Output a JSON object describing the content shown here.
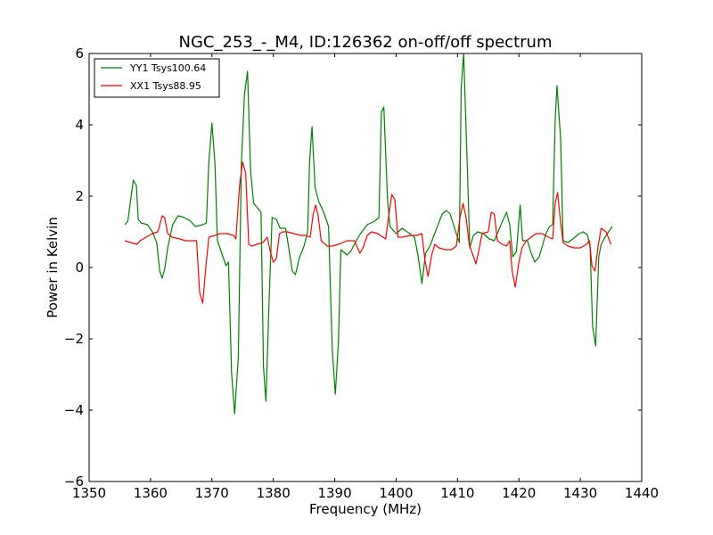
{
  "chart_data": {
    "type": "line",
    "title": "NGC_253_-_M4, ID:126362 on-off/off spectrum",
    "xlabel": "Frequency (MHz)",
    "ylabel": "Power in Kelvin",
    "xlim": [
      1350,
      1440
    ],
    "ylim": [
      -6,
      6
    ],
    "xticks": [
      1350,
      1360,
      1370,
      1380,
      1390,
      1400,
      1410,
      1420,
      1430,
      1440
    ],
    "yticks": [
      -6,
      -4,
      -2,
      0,
      2,
      4,
      6
    ],
    "xtick_labels": [
      "1350",
      "1360",
      "1370",
      "1380",
      "1390",
      "1400",
      "1410",
      "1420",
      "1430",
      "1440"
    ],
    "ytick_labels": [
      "−6",
      "−4",
      "−2",
      "0",
      "2",
      "4",
      "6"
    ],
    "grid": false,
    "legend_position": "top-left",
    "series": [
      {
        "name": "YY1 Tsys100.64",
        "color": "#008000",
        "points": [
          [
            1355.8,
            1.2
          ],
          [
            1356.3,
            1.3
          ],
          [
            1357.2,
            2.45
          ],
          [
            1357.7,
            2.3
          ],
          [
            1358.0,
            1.35
          ],
          [
            1358.5,
            1.25
          ],
          [
            1359.5,
            1.2
          ],
          [
            1360.3,
            1.0
          ],
          [
            1361.0,
            0.7
          ],
          [
            1361.5,
            -0.1
          ],
          [
            1361.9,
            -0.3
          ],
          [
            1362.3,
            -0.05
          ],
          [
            1362.8,
            0.55
          ],
          [
            1363.6,
            1.2
          ],
          [
            1364.5,
            1.45
          ],
          [
            1365.5,
            1.4
          ],
          [
            1366.5,
            1.3
          ],
          [
            1367.3,
            1.15
          ],
          [
            1368.5,
            1.2
          ],
          [
            1369.1,
            1.25
          ],
          [
            1369.5,
            2.95
          ],
          [
            1370.0,
            4.05
          ],
          [
            1370.5,
            2.9
          ],
          [
            1370.9,
            0.75
          ],
          [
            1371.5,
            0.45
          ],
          [
            1372.3,
            0.05
          ],
          [
            1372.7,
            0.15
          ],
          [
            1373.2,
            -2.95
          ],
          [
            1373.7,
            -4.1
          ],
          [
            1374.3,
            -2.5
          ],
          [
            1374.8,
            2.9
          ],
          [
            1375.3,
            4.85
          ],
          [
            1375.8,
            5.5
          ],
          [
            1376.3,
            2.7
          ],
          [
            1376.8,
            1.8
          ],
          [
            1378.0,
            1.55
          ],
          [
            1378.4,
            -2.8
          ],
          [
            1378.8,
            -3.75
          ],
          [
            1379.3,
            -1.0
          ],
          [
            1379.8,
            1.4
          ],
          [
            1380.5,
            1.35
          ],
          [
            1381.1,
            1.1
          ],
          [
            1382.0,
            1.1
          ],
          [
            1382.6,
            0.45
          ],
          [
            1383.1,
            -0.1
          ],
          [
            1383.6,
            -0.2
          ],
          [
            1384.2,
            0.25
          ],
          [
            1385.0,
            0.6
          ],
          [
            1385.6,
            1.0
          ],
          [
            1385.9,
            2.95
          ],
          [
            1386.3,
            3.95
          ],
          [
            1386.8,
            2.25
          ],
          [
            1387.4,
            1.85
          ],
          [
            1388.2,
            1.55
          ],
          [
            1389.0,
            1.15
          ],
          [
            1389.6,
            -2.3
          ],
          [
            1390.1,
            -3.55
          ],
          [
            1390.6,
            -2.1
          ],
          [
            1391.0,
            0.5
          ],
          [
            1392.0,
            0.35
          ],
          [
            1392.6,
            0.45
          ],
          [
            1393.5,
            0.75
          ],
          [
            1394.2,
            0.95
          ],
          [
            1395.3,
            1.2
          ],
          [
            1396.5,
            1.3
          ],
          [
            1397.2,
            1.4
          ],
          [
            1397.6,
            4.35
          ],
          [
            1398.0,
            4.5
          ],
          [
            1398.6,
            1.9
          ],
          [
            1399.0,
            1.15
          ],
          [
            1400.0,
            0.95
          ],
          [
            1401.0,
            1.1
          ],
          [
            1402.2,
            0.95
          ],
          [
            1403.0,
            0.85
          ],
          [
            1403.6,
            0.3
          ],
          [
            1404.2,
            -0.45
          ],
          [
            1404.8,
            0.4
          ],
          [
            1405.5,
            0.6
          ],
          [
            1406.5,
            1.05
          ],
          [
            1407.5,
            1.5
          ],
          [
            1408.2,
            1.6
          ],
          [
            1408.8,
            1.5
          ],
          [
            1409.8,
            0.95
          ],
          [
            1410.3,
            0.7
          ],
          [
            1410.6,
            5.05
          ],
          [
            1411.0,
            6.0
          ],
          [
            1411.6,
            2.8
          ],
          [
            1412.0,
            0.55
          ],
          [
            1412.6,
            0.9
          ],
          [
            1413.3,
            1.0
          ],
          [
            1414.2,
            0.95
          ],
          [
            1415.2,
            0.8
          ],
          [
            1416.0,
            0.75
          ],
          [
            1417.2,
            1.25
          ],
          [
            1418.0,
            1.55
          ],
          [
            1418.5,
            1.2
          ],
          [
            1419.0,
            0.3
          ],
          [
            1419.6,
            0.45
          ],
          [
            1420.2,
            1.75
          ],
          [
            1420.6,
            0.75
          ],
          [
            1421.4,
            0.75
          ],
          [
            1422.0,
            0.4
          ],
          [
            1422.6,
            0.15
          ],
          [
            1423.3,
            0.3
          ],
          [
            1424.4,
            0.95
          ],
          [
            1425.0,
            1.15
          ],
          [
            1425.5,
            1.2
          ],
          [
            1425.9,
            4.1
          ],
          [
            1426.2,
            5.1
          ],
          [
            1426.8,
            3.6
          ],
          [
            1427.2,
            0.75
          ],
          [
            1428.0,
            0.7
          ],
          [
            1428.8,
            0.8
          ],
          [
            1429.8,
            0.95
          ],
          [
            1430.5,
            1.0
          ],
          [
            1431.2,
            0.9
          ],
          [
            1431.6,
            0.55
          ],
          [
            1432.0,
            -1.65
          ],
          [
            1432.5,
            -2.2
          ],
          [
            1433.0,
            0.3
          ],
          [
            1433.4,
            0.65
          ],
          [
            1434.2,
            0.9
          ],
          [
            1435.2,
            1.15
          ]
        ]
      },
      {
        "name": "XX1 Tsys88.95",
        "color": "#ff0000",
        "points": [
          [
            1355.8,
            0.75
          ],
          [
            1356.8,
            0.7
          ],
          [
            1357.8,
            0.65
          ],
          [
            1358.3,
            0.75
          ],
          [
            1359.3,
            0.85
          ],
          [
            1360.3,
            0.95
          ],
          [
            1361.2,
            1.0
          ],
          [
            1361.9,
            1.45
          ],
          [
            1362.3,
            1.4
          ],
          [
            1362.8,
            0.95
          ],
          [
            1363.5,
            0.85
          ],
          [
            1364.8,
            0.8
          ],
          [
            1365.7,
            0.75
          ],
          [
            1366.8,
            0.75
          ],
          [
            1367.5,
            0.75
          ],
          [
            1368.0,
            -0.7
          ],
          [
            1368.5,
            -1.0
          ],
          [
            1369.0,
            0.0
          ],
          [
            1369.5,
            0.85
          ],
          [
            1370.5,
            0.9
          ],
          [
            1371.3,
            0.95
          ],
          [
            1372.5,
            0.95
          ],
          [
            1373.5,
            0.9
          ],
          [
            1373.9,
            0.8
          ],
          [
            1374.5,
            2.3
          ],
          [
            1375.0,
            2.95
          ],
          [
            1375.5,
            2.65
          ],
          [
            1376.0,
            0.65
          ],
          [
            1376.5,
            0.6
          ],
          [
            1377.3,
            0.65
          ],
          [
            1378.3,
            0.7
          ],
          [
            1379.0,
            0.85
          ],
          [
            1379.5,
            0.45
          ],
          [
            1380.0,
            0.15
          ],
          [
            1380.5,
            0.25
          ],
          [
            1381.0,
            0.95
          ],
          [
            1381.5,
            1.0
          ],
          [
            1382.3,
            1.0
          ],
          [
            1383.3,
            0.95
          ],
          [
            1384.5,
            0.9
          ],
          [
            1385.3,
            0.9
          ],
          [
            1386.0,
            0.85
          ],
          [
            1386.5,
            1.5
          ],
          [
            1386.9,
            1.75
          ],
          [
            1387.3,
            1.45
          ],
          [
            1387.8,
            0.75
          ],
          [
            1388.8,
            0.6
          ],
          [
            1389.6,
            0.6
          ],
          [
            1390.6,
            0.65
          ],
          [
            1391.3,
            0.7
          ],
          [
            1392.0,
            0.75
          ],
          [
            1393.2,
            0.75
          ],
          [
            1393.6,
            0.6
          ],
          [
            1394.1,
            0.4
          ],
          [
            1394.6,
            0.55
          ],
          [
            1395.3,
            0.9
          ],
          [
            1396.0,
            1.0
          ],
          [
            1397.0,
            0.95
          ],
          [
            1398.3,
            0.8
          ],
          [
            1398.8,
            1.45
          ],
          [
            1399.3,
            2.05
          ],
          [
            1399.8,
            1.9
          ],
          [
            1400.3,
            0.85
          ],
          [
            1401.0,
            0.85
          ],
          [
            1402.3,
            0.9
          ],
          [
            1403.4,
            0.9
          ],
          [
            1404.2,
            0.95
          ],
          [
            1404.7,
            0.2
          ],
          [
            1405.2,
            -0.25
          ],
          [
            1405.8,
            0.35
          ],
          [
            1406.3,
            0.65
          ],
          [
            1407.0,
            0.55
          ],
          [
            1408.0,
            0.5
          ],
          [
            1409.0,
            0.5
          ],
          [
            1409.8,
            0.6
          ],
          [
            1410.4,
            1.4
          ],
          [
            1410.9,
            1.8
          ],
          [
            1411.4,
            1.4
          ],
          [
            1411.9,
            0.65
          ],
          [
            1412.5,
            0.35
          ],
          [
            1413.0,
            0.1
          ],
          [
            1413.5,
            0.5
          ],
          [
            1414.0,
            0.95
          ],
          [
            1415.0,
            1.0
          ],
          [
            1415.5,
            1.55
          ],
          [
            1416.0,
            1.5
          ],
          [
            1416.5,
            0.75
          ],
          [
            1417.3,
            0.65
          ],
          [
            1418.0,
            0.6
          ],
          [
            1418.5,
            0.75
          ],
          [
            1418.9,
            -0.1
          ],
          [
            1419.4,
            -0.55
          ],
          [
            1420.0,
            0.15
          ],
          [
            1420.5,
            0.55
          ],
          [
            1421.2,
            0.75
          ],
          [
            1422.0,
            0.85
          ],
          [
            1422.8,
            0.95
          ],
          [
            1423.8,
            0.95
          ],
          [
            1424.8,
            0.85
          ],
          [
            1425.5,
            0.8
          ],
          [
            1425.9,
            1.8
          ],
          [
            1426.3,
            2.1
          ],
          [
            1426.8,
            1.25
          ],
          [
            1427.2,
            0.7
          ],
          [
            1428.0,
            0.6
          ],
          [
            1429.0,
            0.55
          ],
          [
            1430.0,
            0.55
          ],
          [
            1431.0,
            0.65
          ],
          [
            1431.5,
            0.75
          ],
          [
            1431.9,
            0.05
          ],
          [
            1432.4,
            -0.1
          ],
          [
            1432.9,
            0.6
          ],
          [
            1433.4,
            1.1
          ],
          [
            1434.2,
            1.0
          ],
          [
            1435.0,
            0.65
          ]
        ]
      }
    ]
  }
}
